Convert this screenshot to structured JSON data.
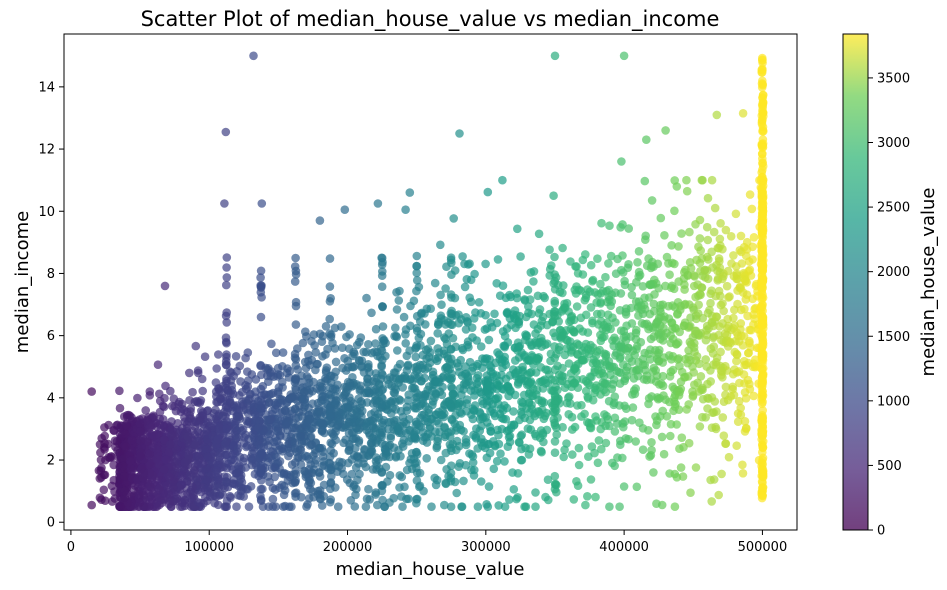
{
  "chart_data": {
    "type": "scatter",
    "title": "Scatter Plot of median_house_value vs median_income",
    "xlabel": "median_house_value",
    "ylabel": "median_income",
    "xlim": [
      -5000,
      525000
    ],
    "ylim": [
      -0.25,
      15.7
    ],
    "x_ticks": [
      0,
      100000,
      200000,
      300000,
      400000,
      500000
    ],
    "y_ticks": [
      0,
      2,
      4,
      6,
      8,
      10,
      12,
      14
    ],
    "grid": false,
    "colormap": "viridis",
    "point_alpha": 0.7,
    "colorbar": {
      "label": "median_house_value",
      "range": [
        0,
        3840
      ],
      "ticks": [
        0,
        500,
        1000,
        1500,
        2000,
        2500,
        3000,
        3500
      ]
    },
    "highlighted_points": [
      {
        "x": 132000,
        "y": 15.0
      },
      {
        "x": 112000,
        "y": 12.55
      },
      {
        "x": 111000,
        "y": 10.25
      },
      {
        "x": 138000,
        "y": 10.25
      },
      {
        "x": 68000,
        "y": 7.6
      },
      {
        "x": 15000,
        "y": 4.2
      },
      {
        "x": 15000,
        "y": 0.55
      },
      {
        "x": 350000,
        "y": 15.0
      },
      {
        "x": 400000,
        "y": 15.0
      },
      {
        "x": 281000,
        "y": 12.5
      },
      {
        "x": 245000,
        "y": 10.6
      },
      {
        "x": 222000,
        "y": 10.25
      },
      {
        "x": 242000,
        "y": 10.05
      },
      {
        "x": 198000,
        "y": 10.05
      },
      {
        "x": 180000,
        "y": 9.7
      },
      {
        "x": 312000,
        "y": 11.0
      },
      {
        "x": 398000,
        "y": 11.6
      },
      {
        "x": 416000,
        "y": 12.3
      },
      {
        "x": 430000,
        "y": 12.6
      },
      {
        "x": 467000,
        "y": 13.1
      },
      {
        "x": 486000,
        "y": 13.15
      },
      {
        "x": 445000,
        "y": 11.0
      },
      {
        "x": 349000,
        "y": 10.5
      },
      {
        "x": 372000,
        "y": 0.55
      },
      {
        "x": 448000,
        "y": 0.95
      },
      {
        "x": 400000,
        "y": 1.15
      },
      {
        "x": 270000,
        "y": 0.55
      },
      {
        "x": 323000,
        "y": 0.8
      }
    ],
    "cap_value": 500001
  }
}
